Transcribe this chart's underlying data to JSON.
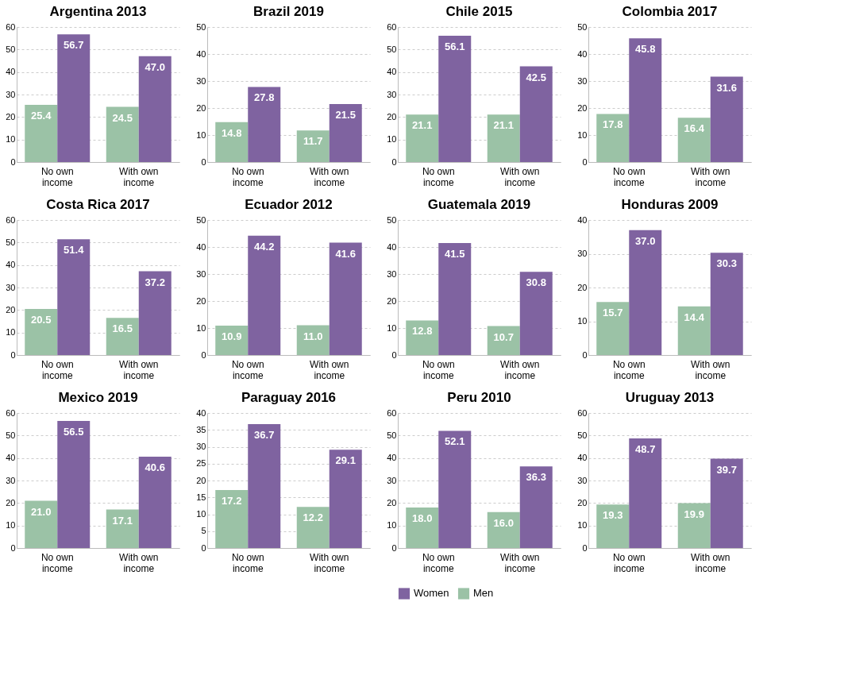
{
  "chart_data": [
    {
      "type": "bar",
      "title": "Argentina 2013",
      "categories": [
        "No own income",
        "With own income"
      ],
      "series": [
        {
          "color": "#9bc2a6",
          "values": [
            25.4,
            24.5
          ],
          "value_labels": [
            "25.4",
            "24.5"
          ]
        },
        {
          "color": "#7f63a0",
          "values": [
            56.7,
            47.0
          ],
          "value_labels": [
            "56.7",
            "47.0"
          ]
        }
      ],
      "ylim": [
        0,
        60
      ],
      "yticks": [
        0,
        10,
        20,
        30,
        40,
        50,
        60
      ],
      "grid": "y"
    },
    {
      "type": "bar",
      "title": "Brazil 2019",
      "categories": [
        "No own income",
        "With own income"
      ],
      "series": [
        {
          "color": "#9bc2a6",
          "values": [
            14.8,
            11.7
          ],
          "value_labels": [
            "14.8",
            "11.7"
          ]
        },
        {
          "color": "#7f63a0",
          "values": [
            27.8,
            21.5
          ],
          "value_labels": [
            "27.8",
            "21.5"
          ]
        }
      ],
      "ylim": [
        0,
        50
      ],
      "yticks": [
        0,
        10,
        20,
        30,
        40,
        50
      ],
      "grid": "y"
    },
    {
      "type": "bar",
      "title": "Chile 2015",
      "categories": [
        "No own income",
        "With own income"
      ],
      "series": [
        {
          "color": "#9bc2a6",
          "values": [
            21.1,
            21.1
          ],
          "value_labels": [
            "21.1",
            "21.1"
          ]
        },
        {
          "color": "#7f63a0",
          "values": [
            56.1,
            42.5
          ],
          "value_labels": [
            "56.1",
            "42.5"
          ]
        }
      ],
      "ylim": [
        0,
        60
      ],
      "yticks": [
        0,
        10,
        20,
        30,
        40,
        50,
        60
      ],
      "grid": "y"
    },
    {
      "type": "bar",
      "title": "Colombia 2017",
      "categories": [
        "No own income",
        "With own income"
      ],
      "series": [
        {
          "color": "#9bc2a6",
          "values": [
            17.8,
            16.4
          ],
          "value_labels": [
            "17.8",
            "16.4"
          ]
        },
        {
          "color": "#7f63a0",
          "values": [
            45.8,
            31.6
          ],
          "value_labels": [
            "45.8",
            "31.6"
          ]
        }
      ],
      "ylim": [
        0,
        50
      ],
      "yticks": [
        0,
        10,
        20,
        30,
        40,
        50
      ],
      "grid": "y"
    },
    {
      "type": "bar",
      "title": "Costa Rica 2017",
      "categories": [
        "No own income",
        "With own income"
      ],
      "series": [
        {
          "color": "#9bc2a6",
          "values": [
            20.5,
            16.5
          ],
          "value_labels": [
            "20.5",
            "16.5"
          ]
        },
        {
          "color": "#7f63a0",
          "values": [
            51.4,
            37.2
          ],
          "value_labels": [
            "51.4",
            "37.2"
          ]
        }
      ],
      "ylim": [
        0,
        60
      ],
      "yticks": [
        0,
        10,
        20,
        30,
        40,
        50,
        60
      ],
      "grid": "y"
    },
    {
      "type": "bar",
      "title": "Ecuador 2012",
      "categories": [
        "No own income",
        "With own income"
      ],
      "series": [
        {
          "color": "#9bc2a6",
          "values": [
            10.9,
            11.0
          ],
          "value_labels": [
            "10.9",
            "11.0"
          ]
        },
        {
          "color": "#7f63a0",
          "values": [
            44.2,
            41.6
          ],
          "value_labels": [
            "44.2",
            "41.6"
          ]
        }
      ],
      "ylim": [
        0,
        50
      ],
      "yticks": [
        0,
        10,
        20,
        30,
        40,
        50
      ],
      "grid": "y"
    },
    {
      "type": "bar",
      "title": "Guatemala 2019",
      "categories": [
        "No own income",
        "With own income"
      ],
      "series": [
        {
          "color": "#9bc2a6",
          "values": [
            12.8,
            10.7
          ],
          "value_labels": [
            "12.8",
            "10.7"
          ]
        },
        {
          "color": "#7f63a0",
          "values": [
            41.5,
            30.8
          ],
          "value_labels": [
            "41.5",
            "30.8"
          ]
        }
      ],
      "ylim": [
        0,
        50
      ],
      "yticks": [
        0,
        10,
        20,
        30,
        40,
        50
      ],
      "grid": "y"
    },
    {
      "type": "bar",
      "title": "Honduras 2009",
      "categories": [
        "No own income",
        "With own income"
      ],
      "series": [
        {
          "color": "#9bc2a6",
          "values": [
            15.7,
            14.4
          ],
          "value_labels": [
            "15.7",
            "14.4"
          ]
        },
        {
          "color": "#7f63a0",
          "values": [
            37.0,
            30.3
          ],
          "value_labels": [
            "37.0",
            "30.3"
          ]
        }
      ],
      "ylim": [
        0,
        40
      ],
      "yticks": [
        0,
        10,
        20,
        30,
        40
      ],
      "grid": "y"
    },
    {
      "type": "bar",
      "title": "Mexico 2019",
      "categories": [
        "No own income",
        "With own income"
      ],
      "series": [
        {
          "color": "#9bc2a6",
          "values": [
            21.0,
            17.1
          ],
          "value_labels": [
            "21.0",
            "17.1"
          ]
        },
        {
          "color": "#7f63a0",
          "values": [
            56.5,
            40.6
          ],
          "value_labels": [
            "56.5",
            "40.6"
          ]
        }
      ],
      "ylim": [
        0,
        60
      ],
      "yticks": [
        0,
        10,
        20,
        30,
        40,
        50,
        60
      ],
      "grid": "y"
    },
    {
      "type": "bar",
      "title": "Paraguay 2016",
      "categories": [
        "No own income",
        "With own income"
      ],
      "series": [
        {
          "color": "#9bc2a6",
          "values": [
            17.2,
            12.2
          ],
          "value_labels": [
            "17.2",
            "12.2"
          ]
        },
        {
          "color": "#7f63a0",
          "values": [
            36.7,
            29.1
          ],
          "value_labels": [
            "36.7",
            "29.1"
          ]
        }
      ],
      "ylim": [
        0,
        40
      ],
      "yticks": [
        0,
        5,
        10,
        15,
        20,
        25,
        30,
        35,
        40
      ],
      "grid": "y"
    },
    {
      "type": "bar",
      "title": "Peru 2010",
      "categories": [
        "No own income",
        "With own income"
      ],
      "series": [
        {
          "name": "Men",
          "color": "#9bc2a6",
          "values": [
            18.0,
            16.0
          ],
          "value_labels": [
            "18.0",
            "16.0"
          ]
        },
        {
          "name": "Women",
          "color": "#7f63a0",
          "values": [
            52.1,
            36.3
          ],
          "value_labels": [
            "52.1",
            "36.3"
          ]
        }
      ],
      "ylim": [
        0,
        60
      ],
      "yticks": [
        0,
        10,
        20,
        30,
        40,
        50,
        60
      ],
      "grid": "y",
      "legend": "bottom"
    },
    {
      "type": "bar",
      "title": "Uruguay 2013",
      "categories": [
        "No own income",
        "With own income"
      ],
      "series": [
        {
          "color": "#9bc2a6",
          "values": [
            19.3,
            19.9
          ],
          "value_labels": [
            "19.3",
            "19.9"
          ]
        },
        {
          "color": "#7f63a0",
          "values": [
            48.7,
            39.7
          ],
          "value_labels": [
            "48.7",
            "39.7"
          ]
        }
      ],
      "ylim": [
        0,
        60
      ],
      "yticks": [
        0,
        10,
        20,
        30,
        40,
        50,
        60
      ],
      "grid": "y"
    }
  ]
}
